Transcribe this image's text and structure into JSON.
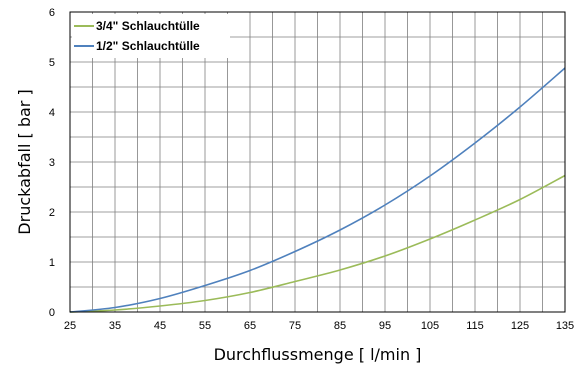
{
  "chart_data": {
    "type": "line",
    "title": "",
    "xlabel": "Durchflussmenge [ l/min ]",
    "ylabel": "Druckabfall [ bar ]",
    "xlim": [
      25,
      135
    ],
    "ylim": [
      0,
      6
    ],
    "x_ticks": [
      "25",
      "30",
      "35",
      "40",
      "45",
      "50",
      "55",
      "60",
      "65",
      "70",
      "75",
      "80",
      "85",
      "90",
      "95",
      "100",
      "105",
      "110",
      "115",
      "120",
      "125",
      "130",
      "135"
    ],
    "x_tick_labels": [
      "25",
      "35",
      "45",
      "55",
      "65",
      "75",
      "85",
      "95",
      "105",
      "115",
      "125",
      "135"
    ],
    "y_ticks": [
      "0",
      "1",
      "2",
      "3",
      "4",
      "5",
      "6"
    ],
    "grid": true,
    "legend_position": "top-left",
    "x": [
      25,
      35,
      45,
      55,
      65,
      75,
      85,
      95,
      105,
      115,
      125,
      135
    ],
    "series": [
      {
        "name": "3/4\" Schlauchtülle",
        "color": "#9bbb59",
        "values": [
          0.0,
          0.04,
          0.12,
          0.23,
          0.39,
          0.61,
          0.84,
          1.12,
          1.46,
          1.84,
          2.25,
          2.73
        ]
      },
      {
        "name": "1/2\" Schlauchtülle",
        "color": "#4f81bd",
        "values": [
          0.0,
          0.09,
          0.27,
          0.53,
          0.83,
          1.21,
          1.64,
          2.14,
          2.72,
          3.38,
          4.1,
          4.88
        ]
      }
    ]
  }
}
